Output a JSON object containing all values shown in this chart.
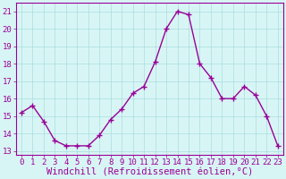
{
  "x": [
    0,
    1,
    2,
    3,
    4,
    5,
    6,
    7,
    8,
    9,
    10,
    11,
    12,
    13,
    14,
    15,
    16,
    17,
    18,
    19,
    20,
    21,
    22,
    23
  ],
  "y": [
    15.2,
    15.6,
    14.7,
    13.6,
    13.3,
    13.3,
    13.3,
    13.9,
    14.8,
    15.4,
    16.3,
    16.7,
    18.1,
    20.0,
    21.0,
    20.8,
    18.0,
    17.2,
    16.0,
    16.0,
    16.7,
    16.2,
    15.0,
    13.3
  ],
  "line_color": "#990099",
  "marker": "+",
  "marker_size": 4,
  "bg_color": "#d8f5f5",
  "grid_color": "#aadddd",
  "xlabel": "Windchill (Refroidissement éolien,°C)",
  "xlabel_color": "#990099",
  "xlabel_fontsize": 7.5,
  "ylabel_ticks": [
    13,
    14,
    15,
    16,
    17,
    18,
    19,
    20,
    21
  ],
  "xticks": [
    0,
    1,
    2,
    3,
    4,
    5,
    6,
    7,
    8,
    9,
    10,
    11,
    12,
    13,
    14,
    15,
    16,
    17,
    18,
    19,
    20,
    21,
    22,
    23
  ],
  "xlim": [
    -0.5,
    23.5
  ],
  "ylim": [
    12.8,
    21.5
  ],
  "tick_color": "#990099",
  "tick_fontsize": 6.5,
  "linewidth": 1.0,
  "spine_color": "#990099",
  "marker_edge_width": 1.0
}
